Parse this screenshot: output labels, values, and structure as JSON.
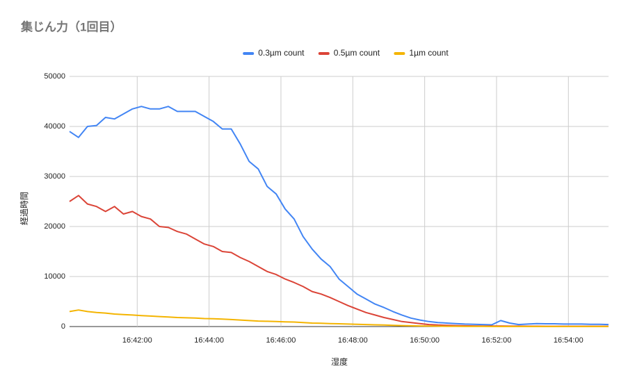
{
  "chart_data": {
    "type": "line",
    "title": "集じん力（1回目）",
    "xlabel": "湿度",
    "ylabel": "経過時間",
    "x": [
      "16:40:07",
      "16:40:22",
      "16:40:37",
      "16:40:52",
      "16:41:07",
      "16:41:22",
      "16:41:37",
      "16:41:52",
      "16:42:07",
      "16:42:22",
      "16:42:37",
      "16:42:52",
      "16:43:07",
      "16:43:22",
      "16:43:37",
      "16:43:52",
      "16:44:07",
      "16:44:22",
      "16:44:37",
      "16:44:52",
      "16:45:07",
      "16:45:22",
      "16:45:37",
      "16:45:52",
      "16:46:07",
      "16:46:22",
      "16:46:37",
      "16:46:52",
      "16:47:07",
      "16:47:22",
      "16:47:37",
      "16:47:52",
      "16:48:07",
      "16:48:22",
      "16:48:37",
      "16:48:52",
      "16:49:07",
      "16:49:22",
      "16:49:37",
      "16:49:52",
      "16:50:07",
      "16:50:22",
      "16:50:37",
      "16:50:52",
      "16:51:07",
      "16:51:22",
      "16:51:37",
      "16:51:52",
      "16:52:07",
      "16:52:22",
      "16:52:37",
      "16:52:52",
      "16:53:07",
      "16:53:22",
      "16:53:37",
      "16:53:52",
      "16:54:07",
      "16:54:22",
      "16:54:37",
      "16:54:52",
      "16:55:07"
    ],
    "series": [
      {
        "name": "0.3µm count",
        "color": "#4285f4",
        "values": [
          39000,
          37800,
          40000,
          40200,
          41800,
          41500,
          42500,
          43500,
          44000,
          43500,
          43500,
          44000,
          43000,
          43000,
          43000,
          42000,
          41000,
          39500,
          39500,
          36500,
          33000,
          31500,
          28000,
          26500,
          23500,
          21500,
          18000,
          15500,
          13500,
          12000,
          9500,
          8000,
          6500,
          5500,
          4500,
          3800,
          3000,
          2300,
          1700,
          1300,
          1000,
          800,
          700,
          600,
          500,
          450,
          400,
          350,
          1200,
          700,
          400,
          500,
          600,
          550,
          550,
          500,
          500,
          500,
          450,
          450,
          400
        ]
      },
      {
        "name": "0.5µm count",
        "color": "#db4437",
        "values": [
          25000,
          26200,
          24500,
          24000,
          23000,
          24000,
          22500,
          23000,
          22000,
          21500,
          20000,
          19800,
          19000,
          18500,
          17500,
          16500,
          16000,
          15000,
          14800,
          13800,
          13000,
          12000,
          11000,
          10400,
          9500,
          8800,
          8000,
          7000,
          6500,
          5800,
          5000,
          4200,
          3500,
          2800,
          2300,
          1800,
          1400,
          1000,
          800,
          600,
          400,
          300,
          250,
          200,
          150,
          120,
          100,
          100,
          100,
          80,
          80,
          70,
          70,
          60,
          60,
          60,
          50,
          50,
          50,
          50,
          50
        ]
      },
      {
        "name": "1µm count",
        "color": "#f4b400",
        "values": [
          3000,
          3300,
          3000,
          2800,
          2700,
          2500,
          2400,
          2300,
          2200,
          2100,
          2000,
          1900,
          1800,
          1750,
          1700,
          1600,
          1550,
          1500,
          1400,
          1300,
          1200,
          1100,
          1050,
          1000,
          950,
          900,
          800,
          700,
          650,
          600,
          550,
          500,
          450,
          400,
          350,
          300,
          250,
          200,
          150,
          120,
          100,
          80,
          60,
          50,
          40,
          30,
          30,
          20,
          20,
          20,
          20,
          20,
          20,
          10,
          10,
          10,
          10,
          10,
          10,
          10,
          10
        ]
      }
    ],
    "xlim": [
      "16:40:07",
      "16:55:07"
    ],
    "xticks": [
      "16:42:00",
      "16:44:00",
      "16:46:00",
      "16:48:00",
      "16:50:00",
      "16:52:00",
      "16:54:00"
    ],
    "ylim": [
      0,
      50000
    ],
    "yticks": [
      0,
      10000,
      20000,
      30000,
      40000,
      50000
    ],
    "grid": true,
    "legend": "top"
  }
}
